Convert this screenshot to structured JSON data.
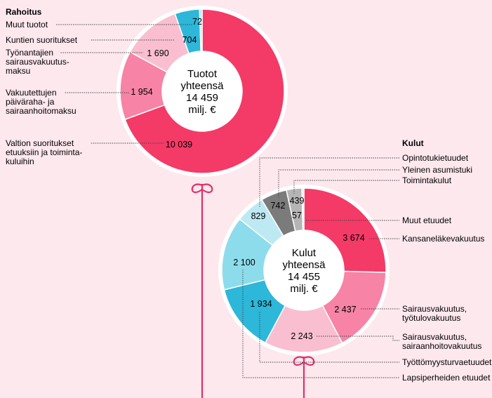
{
  "colors": {
    "background": "#fde8ee",
    "leader": "#444444",
    "stem": "#e0306a",
    "center": "#ffffff"
  },
  "chart_data": [
    {
      "type": "pie",
      "title": "Rahoitus",
      "center_label": [
        "Tuotot",
        "yhteensä",
        "14 459",
        "milj. €"
      ],
      "slices": [
        {
          "label": "Valtion suoritukset etuuksiin ja toimintakuluihin",
          "label_lines": [
            "Valtion suoritukset",
            "etuuksiin ja toiminta-",
            "kuluihin"
          ],
          "value": 10039,
          "value_text": "10 039",
          "color": "#f43a66"
        },
        {
          "label": "Vakuutettujen päiväraha- ja sairaanhoitomaksu",
          "label_lines": [
            "Vakuutettujen",
            "päiväraha- ja",
            "sairaanhoitomaksu"
          ],
          "value": 1954,
          "value_text": "1 954",
          "color": "#f783a6"
        },
        {
          "label": "Työnantajien sairausvakuutusmaksu",
          "label_lines": [
            "Työnantajien",
            "sairausvakuutus-",
            "maksu"
          ],
          "value": 1690,
          "value_text": "1 690",
          "color": "#f9bfd0"
        },
        {
          "label": "Kuntien suoritukset",
          "label_lines": [
            "Kuntien suoritukset"
          ],
          "value": 704,
          "value_text": "704",
          "color": "#2db7d9"
        },
        {
          "label": "Muut tuotot",
          "label_lines": [
            "Muut tuotot"
          ],
          "value": 72,
          "value_text": "72",
          "color": "#b5e6f1"
        }
      ]
    },
    {
      "type": "pie",
      "title": "Kulut",
      "center_label": [
        "Kulut",
        "yhteensä",
        "14 455",
        "milj. €"
      ],
      "slices": [
        {
          "label": "Kansaneläkevakuutus",
          "label_lines": [
            "Kansaneläkevakuutus"
          ],
          "value": 3674,
          "value_text": "3 674",
          "color": "#f43a66"
        },
        {
          "label": "Sairausvakuutus, työtulovakuutus",
          "label_lines": [
            "Sairausvakuutus,",
            "työtulovakuutus"
          ],
          "value": 2437,
          "value_text": "2 437",
          "color": "#f783a6"
        },
        {
          "label": "Sairausvakuutus, sairaanhoitovakuutus",
          "label_lines": [
            "Sairausvakuutus,",
            "sairaanhoitovakuutus"
          ],
          "value": 2243,
          "value_text": "2 243",
          "color": "#f9bfd0"
        },
        {
          "label": "Työttömyysturvaetuudet",
          "label_lines": [
            "Työttömyysturvaetuudet"
          ],
          "value": 1934,
          "value_text": "1 934",
          "color": "#2db7d9"
        },
        {
          "label": "Lapsiperheiden etuudet",
          "label_lines": [
            "Lapsiperheiden etuudet"
          ],
          "value": 2100,
          "value_text": "2 100",
          "color": "#8ddcec"
        },
        {
          "label": "Opintotukietuudet",
          "label_lines": [
            "Opintotukietuudet"
          ],
          "value": 829,
          "value_text": "829",
          "color": "#bde9f3"
        },
        {
          "label": "Yleinen asumistuki",
          "label_lines": [
            "Yleinen asumistuki"
          ],
          "value": 742,
          "value_text": "742",
          "color": "#7b7b7b"
        },
        {
          "label": "Toimintakulut",
          "label_lines": [
            "Toimintakulut"
          ],
          "value": 439,
          "value_text": "439",
          "color": "#b5b5b5"
        },
        {
          "label": "Muut etuudet",
          "label_lines": [
            "Muut etuudet"
          ],
          "value": 57,
          "value_text": "57",
          "color": "#e6e6e6"
        }
      ]
    }
  ]
}
